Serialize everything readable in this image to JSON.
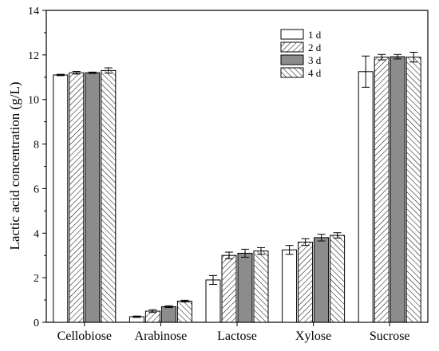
{
  "chart_data": {
    "type": "bar",
    "categories": [
      "Cellobiose",
      "Arabinose",
      "Lactose",
      "Xylose",
      "Sucrose"
    ],
    "series": [
      {
        "name": "1 d",
        "values": [
          11.1,
          0.25,
          1.9,
          3.25,
          11.25
        ],
        "errors": [
          0.03,
          0.03,
          0.2,
          0.2,
          0.7
        ],
        "pattern": "none"
      },
      {
        "name": "2 d",
        "values": [
          11.2,
          0.5,
          3.0,
          3.6,
          11.9
        ],
        "errors": [
          0.06,
          0.06,
          0.15,
          0.15,
          0.12
        ],
        "pattern": "hatch-forward"
      },
      {
        "name": "3 d",
        "values": [
          11.2,
          0.7,
          3.1,
          3.8,
          11.92
        ],
        "errors": [
          0.03,
          0.04,
          0.18,
          0.15,
          0.1
        ],
        "pattern": "solid-gray"
      },
      {
        "name": "4 d",
        "values": [
          11.3,
          0.95,
          3.2,
          3.9,
          11.9
        ],
        "errors": [
          0.12,
          0.04,
          0.15,
          0.12,
          0.22
        ],
        "pattern": "hatch-back"
      }
    ],
    "title": "",
    "xlabel": "",
    "ylabel": "Lactic acid concentration (g/L)",
    "ylim": [
      0,
      14
    ],
    "yticks": [
      0,
      2,
      4,
      6,
      8,
      10,
      12,
      14
    ],
    "grid": false,
    "legend_position": "top-right",
    "colors": {
      "solid": "#8c8c8c",
      "outline": "#000000",
      "background": "#ffffff"
    }
  }
}
